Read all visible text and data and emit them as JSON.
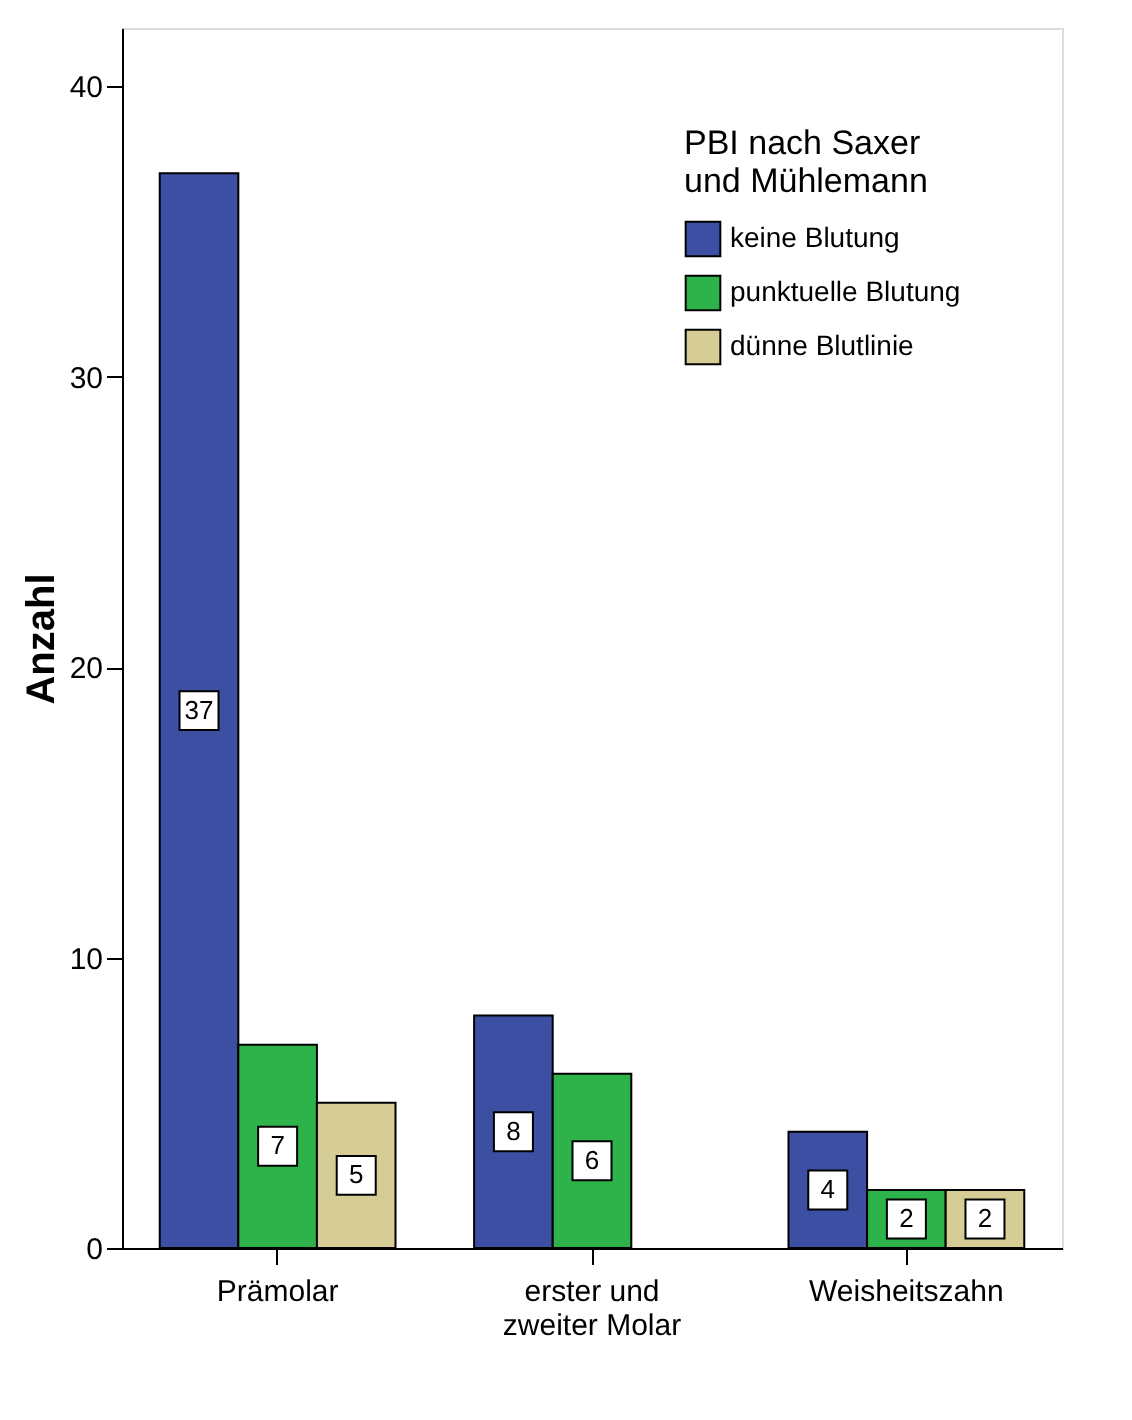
{
  "chart_data": {
    "type": "bar",
    "ylabel": "Anzahl",
    "legend_title": "PBI nach Saxer\nund Mühlemann",
    "categories": [
      "Prämolar",
      "erster und\nzweiter Molar",
      "Weisheitszahn"
    ],
    "series": [
      {
        "name": "keine Blutung",
        "color": "#3c4fa3",
        "values": [
          37,
          8,
          4
        ]
      },
      {
        "name": "punktuelle Blutung",
        "color": "#2db34a",
        "values": [
          7,
          6,
          2
        ]
      },
      {
        "name": "dünne Blutlinie",
        "color": "#d5cc96",
        "values": [
          5,
          null,
          2
        ]
      }
    ],
    "ylim": [
      0,
      42
    ],
    "yticks": [
      0,
      10,
      20,
      30,
      40
    ],
    "grid": false,
    "legend": "top right",
    "data_labels": true
  }
}
